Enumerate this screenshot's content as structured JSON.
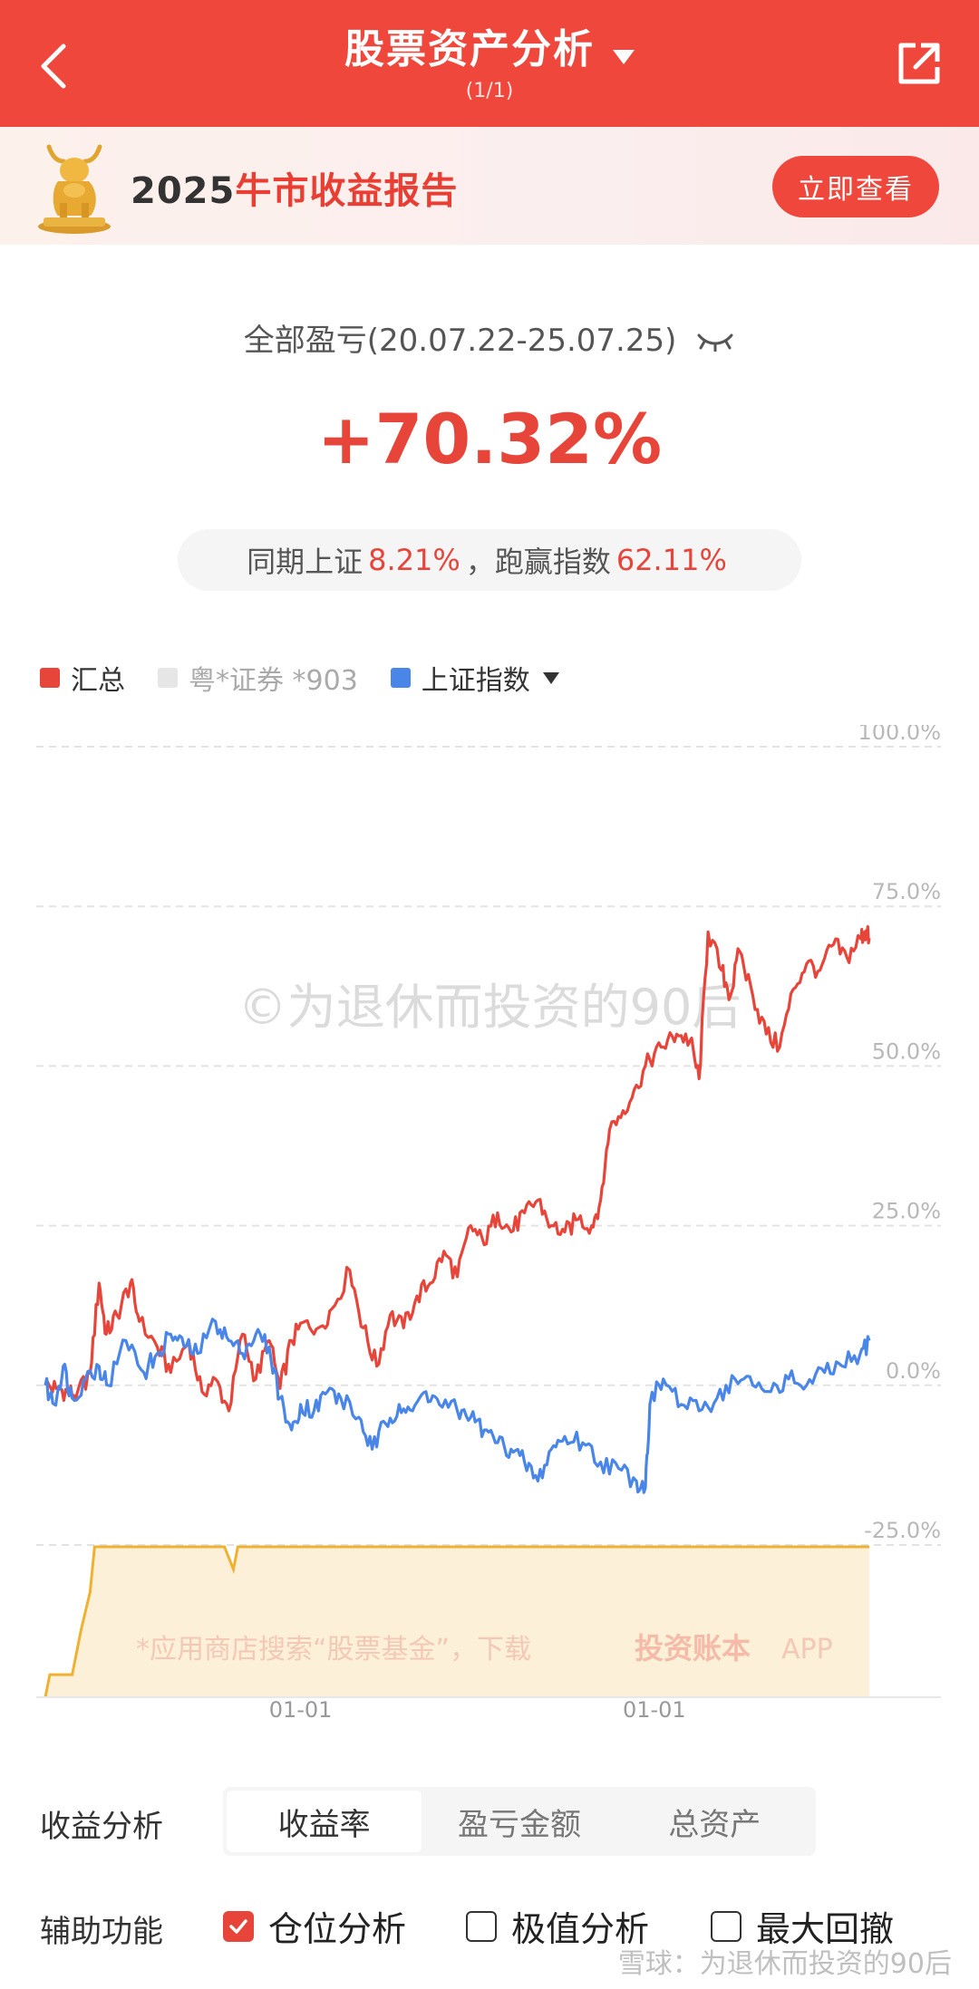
{
  "header": {
    "title": "股票资产分析",
    "subtitle": "(1/1)",
    "back_icon": "chevron-left-icon",
    "share_icon": "share-icon"
  },
  "banner": {
    "year": "2025",
    "text": "牛市收益报告",
    "button": "立即查看"
  },
  "summary": {
    "label": "全部盈亏(20.07.22-25.07.25)",
    "value": "+70.32%",
    "compare_prefix": "同期上证",
    "compare_index": "8.21%",
    "compare_sep": "，跑赢指数",
    "compare_excess": "62.11%"
  },
  "legend": {
    "items": [
      {
        "label": "汇总",
        "color": "#e8453a"
      },
      {
        "label": "粤*证券 *903",
        "color": "#e6e6e6"
      },
      {
        "label": "上证指数",
        "color": "#4a86e8"
      }
    ]
  },
  "watermarks": {
    "chart": "©为退休而投资的90后",
    "position_area": "*应用商店搜索“股票基金”，下载",
    "brand": "投资账本",
    "brand_suffix": "APP",
    "footer": "雪球：为退休而投资的90后"
  },
  "chart_data": {
    "type": "line",
    "ylim": [
      -25,
      100
    ],
    "y_ticks": [
      "100.0%",
      "75.0%",
      "50.0%",
      "25.0%",
      "0.0%",
      "-25.0%"
    ],
    "y_tick_values": [
      100,
      75,
      50,
      25,
      0,
      -25
    ],
    "x_tick_labels": [
      "01-01",
      "01-01"
    ],
    "x_tick_positions": [
      0.285,
      0.68
    ],
    "series": [
      {
        "name": "汇总",
        "color": "#e8453a",
        "points": [
          [
            0.0,
            0
          ],
          [
            0.012,
            -0.5
          ],
          [
            0.025,
            -1
          ],
          [
            0.035,
            -1.5
          ],
          [
            0.05,
            2
          ],
          [
            0.06,
            16
          ],
          [
            0.068,
            8
          ],
          [
            0.08,
            11
          ],
          [
            0.095,
            16
          ],
          [
            0.105,
            10
          ],
          [
            0.125,
            6
          ],
          [
            0.14,
            2
          ],
          [
            0.16,
            7
          ],
          [
            0.175,
            -1
          ],
          [
            0.19,
            1
          ],
          [
            0.205,
            -4
          ],
          [
            0.22,
            8
          ],
          [
            0.235,
            1
          ],
          [
            0.25,
            7
          ],
          [
            0.262,
            -0.5
          ],
          [
            0.275,
            7
          ],
          [
            0.29,
            10
          ],
          [
            0.305,
            9
          ],
          [
            0.32,
            12
          ],
          [
            0.34,
            18
          ],
          [
            0.355,
            9
          ],
          [
            0.37,
            3
          ],
          [
            0.385,
            11
          ],
          [
            0.4,
            9
          ],
          [
            0.415,
            14
          ],
          [
            0.43,
            16
          ],
          [
            0.445,
            21
          ],
          [
            0.46,
            17
          ],
          [
            0.475,
            25
          ],
          [
            0.49,
            22
          ],
          [
            0.505,
            27
          ],
          [
            0.52,
            24
          ],
          [
            0.535,
            27
          ],
          [
            0.55,
            29
          ],
          [
            0.565,
            25
          ],
          [
            0.58,
            24
          ],
          [
            0.595,
            26
          ],
          [
            0.61,
            25
          ],
          [
            0.62,
            29
          ],
          [
            0.63,
            40
          ],
          [
            0.645,
            43
          ],
          [
            0.66,
            47
          ],
          [
            0.675,
            51
          ],
          [
            0.69,
            53
          ],
          [
            0.705,
            55
          ],
          [
            0.72,
            54
          ],
          [
            0.73,
            48
          ],
          [
            0.74,
            71
          ],
          [
            0.755,
            65
          ],
          [
            0.765,
            61
          ],
          [
            0.775,
            68
          ],
          [
            0.79,
            61
          ],
          [
            0.805,
            55
          ],
          [
            0.82,
            53
          ],
          [
            0.835,
            62
          ],
          [
            0.85,
            66
          ],
          [
            0.865,
            65
          ],
          [
            0.88,
            69
          ],
          [
            0.895,
            67
          ],
          [
            0.91,
            70
          ],
          [
            0.915,
            71
          ],
          [
            0.92,
            70
          ]
        ]
      },
      {
        "name": "上证指数",
        "color": "#4a86e8",
        "points": [
          [
            0.0,
            0
          ],
          [
            0.01,
            -3
          ],
          [
            0.02,
            3
          ],
          [
            0.03,
            -2
          ],
          [
            0.045,
            1
          ],
          [
            0.06,
            3
          ],
          [
            0.07,
            0
          ],
          [
            0.09,
            7
          ],
          [
            0.11,
            2
          ],
          [
            0.125,
            5
          ],
          [
            0.14,
            8
          ],
          [
            0.155,
            6
          ],
          [
            0.17,
            5
          ],
          [
            0.19,
            10
          ],
          [
            0.205,
            7
          ],
          [
            0.22,
            5
          ],
          [
            0.235,
            8
          ],
          [
            0.25,
            6
          ],
          [
            0.262,
            -2
          ],
          [
            0.275,
            -7
          ],
          [
            0.285,
            -3
          ],
          [
            0.3,
            -4
          ],
          [
            0.315,
            -1
          ],
          [
            0.33,
            -2
          ],
          [
            0.35,
            -5
          ],
          [
            0.365,
            -10
          ],
          [
            0.38,
            -6
          ],
          [
            0.395,
            -3
          ],
          [
            0.41,
            -4
          ],
          [
            0.425,
            -1
          ],
          [
            0.44,
            -3
          ],
          [
            0.46,
            -4
          ],
          [
            0.475,
            -5
          ],
          [
            0.49,
            -7
          ],
          [
            0.505,
            -9
          ],
          [
            0.52,
            -10
          ],
          [
            0.535,
            -12
          ],
          [
            0.55,
            -15
          ],
          [
            0.565,
            -10
          ],
          [
            0.58,
            -8
          ],
          [
            0.6,
            -9
          ],
          [
            0.62,
            -12
          ],
          [
            0.64,
            -13
          ],
          [
            0.66,
            -15
          ],
          [
            0.67,
            -16
          ],
          [
            0.675,
            -3
          ],
          [
            0.69,
            1
          ],
          [
            0.71,
            -3
          ],
          [
            0.73,
            -4
          ],
          [
            0.75,
            -2
          ],
          [
            0.77,
            1
          ],
          [
            0.79,
            0
          ],
          [
            0.81,
            -1
          ],
          [
            0.83,
            1
          ],
          [
            0.85,
            0
          ],
          [
            0.87,
            2
          ],
          [
            0.89,
            3
          ],
          [
            0.91,
            5
          ],
          [
            0.92,
            7
          ]
        ]
      }
    ],
    "position_area": {
      "color": "#f0b030",
      "points": [
        [
          0.0,
          0
        ],
        [
          0.005,
          0.15
        ],
        [
          0.03,
          0.15
        ],
        [
          0.04,
          0.45
        ],
        [
          0.05,
          0.7
        ],
        [
          0.055,
          1
        ],
        [
          0.2,
          1
        ],
        [
          0.21,
          0.85
        ],
        [
          0.215,
          1
        ],
        [
          0.92,
          1
        ]
      ]
    }
  },
  "controls": {
    "analysis_label": "收益分析",
    "tabs": [
      {
        "label": "收益率",
        "active": true
      },
      {
        "label": "盈亏金额",
        "active": false
      },
      {
        "label": "总资产",
        "active": false
      }
    ],
    "aux_label": "辅助功能",
    "checks": [
      {
        "label": "仓位分析",
        "checked": true
      },
      {
        "label": "极值分析",
        "checked": false
      },
      {
        "label": "最大回撤",
        "checked": false
      }
    ]
  }
}
